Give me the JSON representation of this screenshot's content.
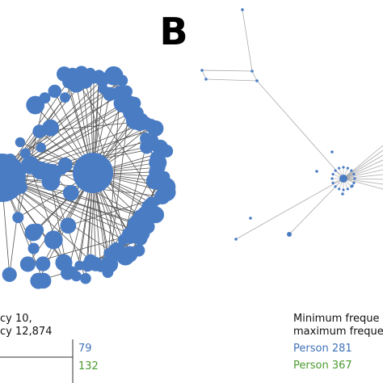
{
  "panel_label": "B",
  "left_legend": {
    "line1": "cy 10,",
    "line2": "cy 12,874",
    "rows": [
      "79",
      "132"
    ]
  },
  "right_legend": {
    "line1": "Minimum freque",
    "line2": "maximum freque",
    "rows": [
      "Person 281",
      "Person 367"
    ]
  }
}
